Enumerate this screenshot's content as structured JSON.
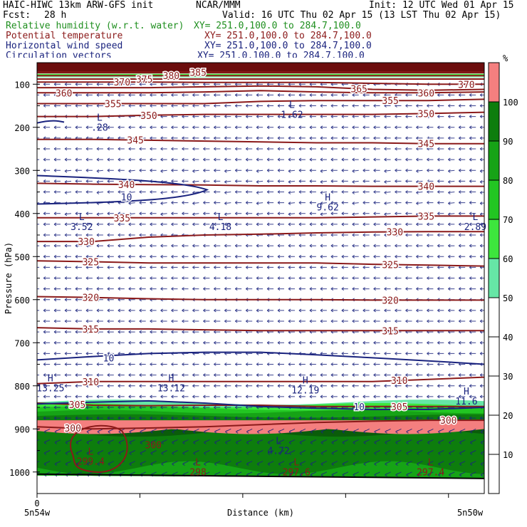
{
  "header": {
    "model": "HAIC-HIWC 13km ARW-GFS init",
    "org": "NCAR/MMM",
    "init": "Init: 12 UTC Wed 01 Apr 15",
    "fcst_label": "Fcst:",
    "fcst_value": "28 h",
    "valid": "Valid: 16 UTC Thu 02 Apr 15 (13 LST Thu 02 Apr 15)"
  },
  "fields": [
    {
      "name": "Relative humidity (w.r.t. water)",
      "xy": "XY= 251.0,100.0 to 284.7,100.0",
      "color": "#1f8f1f"
    },
    {
      "name": "Potential temperature",
      "xy": "XY= 251.0,100.0 to 284.7,100.0",
      "color": "#8b1a1a"
    },
    {
      "name": "Horizontal wind speed",
      "xy": "XY= 251.0,100.0 to 284.7,100.0",
      "color": "#1a237e"
    },
    {
      "name": "Circulation vectors",
      "xy": "XY= 251.0,100.0 to 284.7,100.0",
      "color": "#1a237e"
    }
  ],
  "colors": {
    "theta": "#8b1a1a",
    "wind": "#1a237e",
    "rh": [
      "#ffffff",
      "#66e6a6",
      "#3de63d",
      "#22c622",
      "#16a316",
      "#0d7d0d",
      "#0a5c0a",
      "#f47f7f"
    ]
  },
  "chart_data": {
    "type": "heatmap",
    "xlabel": "Distance (km)",
    "ylabel": "Pressure (hPa)",
    "x_ticks": [
      "0"
    ],
    "x_end_labels": [
      "5n54w",
      "5n50w"
    ],
    "y_ticks": [
      100,
      200,
      300,
      400,
      500,
      600,
      700,
      800,
      900,
      1000
    ],
    "ylim": [
      1050,
      50
    ],
    "colorbar": {
      "unit": "%",
      "ticks": [
        10,
        20,
        30,
        40,
        50,
        60,
        70,
        80,
        90,
        100
      ],
      "levels": [
        {
          "from": 0,
          "to": 50,
          "color": "#ffffff"
        },
        {
          "from": 50,
          "to": 60,
          "color": "#66e6a6"
        },
        {
          "from": 60,
          "to": 70,
          "color": "#3de63d"
        },
        {
          "from": 70,
          "to": 80,
          "color": "#22c622"
        },
        {
          "from": 80,
          "to": 90,
          "color": "#16a316"
        },
        {
          "from": 90,
          "to": 100,
          "color": "#0d7d0d"
        },
        {
          "from": 100,
          "to": 110,
          "color": "#f47f7f"
        }
      ]
    },
    "theta_isentropes": [
      {
        "value": "300",
        "p": [
          895,
          900,
          898,
          895,
          890,
          885,
          882,
          880,
          880
        ]
      },
      {
        "value": "305",
        "p": [
          840,
          845,
          846,
          845,
          845,
          848,
          848,
          848,
          848
        ]
      },
      {
        "value": "310",
        "p": [
          795,
          790,
          790,
          790,
          790,
          790,
          790,
          785,
          780
        ]
      },
      {
        "value": "315",
        "p": [
          665,
          668,
          668,
          670,
          672,
          672,
          672,
          672,
          672
        ]
      },
      {
        "value": "320",
        "p": [
          593,
          595,
          598,
          600,
          600,
          600,
          601,
          601,
          601
        ]
      },
      {
        "value": "325",
        "p": [
          510,
          512,
          515,
          515,
          515,
          515,
          518,
          520,
          522
        ]
      },
      {
        "value": "330",
        "p": [
          465,
          465,
          455,
          450,
          448,
          445,
          443,
          442,
          442
        ]
      },
      {
        "value": "335",
        "p": [
          410,
          410,
          410,
          410,
          410,
          410,
          408,
          406,
          406
        ]
      },
      {
        "value": "340",
        "p": [
          330,
          332,
          333,
          334,
          336,
          336,
          337,
          337,
          337
        ]
      },
      {
        "value": "345",
        "p": [
          228,
          228,
          230,
          232,
          234,
          236,
          236,
          238,
          238
        ]
      },
      {
        "value": "350",
        "p": [
          175,
          175,
          172,
          170,
          170,
          170,
          170,
          168,
          165
        ]
      },
      {
        "value": "355",
        "p": [
          145,
          145,
          145,
          145,
          140,
          138,
          138,
          138,
          135
        ]
      },
      {
        "value": "360",
        "p": [
          120,
          120,
          120,
          118,
          115,
          118,
          120,
          120,
          118
        ]
      },
      {
        "value": "365",
        "p": [
          108,
          108,
          108,
          106,
          104,
          106,
          112,
          114,
          112
        ]
      },
      {
        "value": "370",
        "p": [
          95,
          95,
          95,
          96,
          96,
          96,
          98,
          100,
          100
        ]
      },
      {
        "value": "375",
        "p": [
          88,
          88,
          88,
          88,
          88,
          88,
          88,
          88,
          88
        ]
      },
      {
        "value": "380",
        "p": [
          80,
          80,
          80,
          80,
          80,
          80,
          80,
          80,
          80
        ]
      },
      {
        "value": "385",
        "p": [
          72,
          72,
          72,
          72,
          72,
          72,
          72,
          72,
          72
        ]
      }
    ],
    "wind_contours": [
      {
        "value": "10",
        "p_top": 312,
        "p_bottom": 378,
        "x_end_frac": 0.38
      },
      {
        "value": "10",
        "p": [
          740,
          732,
          725,
          722,
          722,
          728,
          735,
          742,
          750
        ]
      },
      {
        "value": "10",
        "p": [
          842,
          838,
          835,
          840,
          848,
          852,
          855,
          855,
          850
        ]
      }
    ],
    "centers": [
      {
        "kind": "L",
        "value": ".28",
        "xf": 0.14,
        "p": 185
      },
      {
        "kind": "L",
        "value": "1.62",
        "xf": 0.57,
        "p": 155
      },
      {
        "kind": "H",
        "value": "9.62",
        "xf": 0.65,
        "p": 370
      },
      {
        "kind": "L",
        "value": "3.52",
        "xf": 0.1,
        "p": 415
      },
      {
        "kind": "L",
        "value": "4.18",
        "xf": 0.41,
        "p": 415
      },
      {
        "kind": "L",
        "value": "2.89",
        "xf": 0.98,
        "p": 415
      },
      {
        "kind": "H",
        "value": "13.25",
        "xf": 0.03,
        "p": 790
      },
      {
        "kind": "H",
        "value": "13.12",
        "xf": 0.3,
        "p": 790
      },
      {
        "kind": "H",
        "value": "12.19",
        "xf": 0.6,
        "p": 795
      },
      {
        "kind": "H",
        "value": "11.6",
        "xf": 0.96,
        "p": 820
      },
      {
        "kind": "L",
        "value": "299.4",
        "xf": 0.12,
        "p": 960
      },
      {
        "kind": "L",
        "value": "298",
        "xf": 0.36,
        "p": 985
      },
      {
        "kind": "L",
        "value": "4.72",
        "xf": 0.54,
        "p": 935
      },
      {
        "kind": "L",
        "value": "297.6",
        "xf": 0.58,
        "p": 985
      },
      {
        "kind": "L",
        "value": "297.4",
        "xf": 0.88,
        "p": 985
      }
    ],
    "extra_theta_labels": [
      {
        "value": "300",
        "xf": 0.26,
        "p": 945
      }
    ]
  }
}
